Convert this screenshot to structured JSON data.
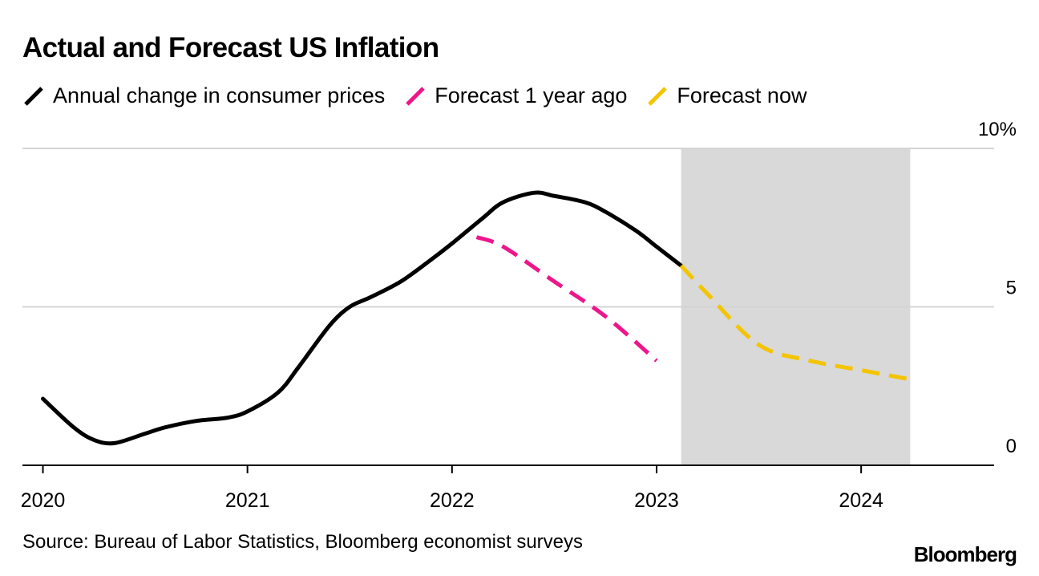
{
  "chart_data": {
    "type": "line",
    "title": "Actual and Forecast US Inflation",
    "xlabel": "",
    "ylabel": "",
    "ylim": [
      0,
      10
    ],
    "xlim": [
      2019.9,
      2024.65
    ],
    "y_ticks": [
      0,
      5,
      10
    ],
    "y_tick_labels": [
      "0",
      "5",
      "10%"
    ],
    "x_ticks": [
      2020,
      2021,
      2022,
      2023,
      2024
    ],
    "x_tick_labels": [
      "2020",
      "2021",
      "2022",
      "2023",
      "2024"
    ],
    "grid": true,
    "legend_position": "top-left",
    "shaded_region": {
      "x_start": 2023.12,
      "x_end": 2024.24,
      "color": "#d9d9d9"
    },
    "series": [
      {
        "name": "Annual change in consumer prices",
        "color": "#000000",
        "style": "solid",
        "x": [
          2020.0,
          2020.15,
          2020.25,
          2020.35,
          2020.5,
          2020.6,
          2020.75,
          2020.9,
          2021.0,
          2021.15,
          2021.25,
          2021.4,
          2021.5,
          2021.6,
          2021.75,
          2021.9,
          2022.0,
          2022.15,
          2022.25,
          2022.4,
          2022.5,
          2022.65,
          2022.75,
          2022.9,
          2023.0,
          2023.12
        ],
        "values": [
          2.1,
          1.2,
          0.8,
          0.7,
          1.0,
          1.2,
          1.4,
          1.5,
          1.7,
          2.3,
          3.1,
          4.4,
          5.0,
          5.3,
          5.8,
          6.5,
          7.0,
          7.8,
          8.3,
          8.6,
          8.5,
          8.3,
          8.0,
          7.4,
          6.9,
          6.3
        ]
      },
      {
        "name": "Forecast 1 year ago",
        "color": "#ed168b",
        "style": "dashed",
        "x": [
          2022.12,
          2022.25,
          2022.5,
          2022.75,
          2023.0
        ],
        "values": [
          7.2,
          6.9,
          5.8,
          4.7,
          3.3
        ]
      },
      {
        "name": "Forecast now",
        "color": "#f5c400",
        "style": "dashed",
        "x": [
          2023.12,
          2023.25,
          2023.5,
          2023.75,
          2024.0,
          2024.25
        ],
        "values": [
          6.3,
          5.4,
          3.8,
          3.3,
          3.0,
          2.7
        ]
      }
    ]
  },
  "legend": {
    "items": [
      {
        "label": "Annual change in consumer prices",
        "color": "#000000"
      },
      {
        "label": "Forecast 1 year ago",
        "color": "#ed168b"
      },
      {
        "label": "Forecast now",
        "color": "#f5c400"
      }
    ]
  },
  "footer": {
    "source": "Source: Bureau of Labor Statistics, Bloomberg economist surveys",
    "logo": "Bloomberg"
  }
}
